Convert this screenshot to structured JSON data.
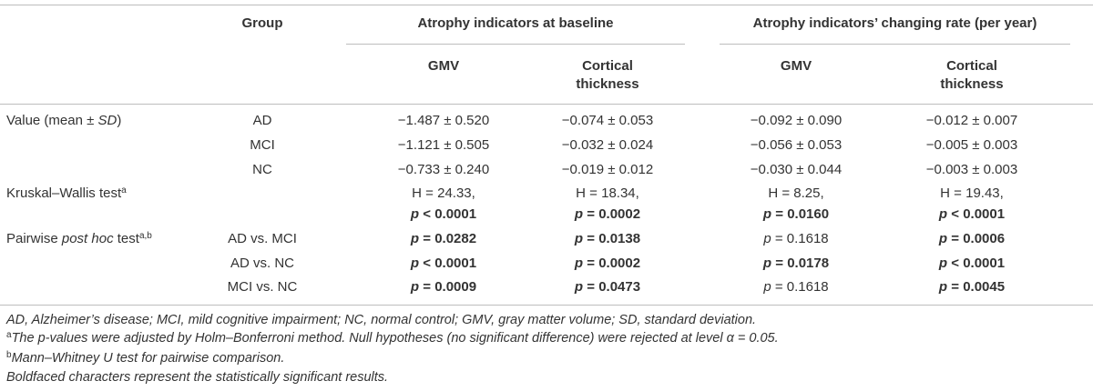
{
  "header": {
    "group": "Group",
    "baseline": "Atrophy indicators at baseline",
    "change": "Atrophy indicators’ changing rate (per year)",
    "gmv": "GMV",
    "ct_line1": "Cortical",
    "ct_line2": "thickness"
  },
  "value_row": {
    "label_pre": "Value (mean ± ",
    "label_sd": "SD",
    "label_post": ")",
    "rows": [
      {
        "group": "AD",
        "c1": "−1.487 ± 0.520",
        "c2": "−0.074 ± 0.053",
        "c3": "−0.092 ± 0.090",
        "c4": "−0.012 ± 0.007"
      },
      {
        "group": "MCI",
        "c1": "−1.121 ± 0.505",
        "c2": "−0.032 ± 0.024",
        "c3": "−0.056 ± 0.053",
        "c4": "−0.005 ± 0.003"
      },
      {
        "group": "NC",
        "c1": "−0.733 ± 0.240",
        "c2": "−0.019 ± 0.012",
        "c3": "−0.030 ± 0.044",
        "c4": "−0.003 ± 0.003"
      }
    ]
  },
  "kw": {
    "label": "Kruskal–Wallis test",
    "sup": "a",
    "h": [
      "H = 24.33,",
      "H = 18.34,",
      "H = 8.25,",
      "H = 19.43,"
    ],
    "p_sym": "p",
    "p": [
      " < 0.0001",
      " = 0.0002",
      " = 0.0160",
      " < 0.0001"
    ]
  },
  "pw": {
    "label_pre": "Pairwise ",
    "label_it": "post hoc",
    "label_post": " test",
    "sup": "a,b",
    "rows": [
      {
        "group": "AD vs. MCI",
        "v": [
          " = 0.0282",
          " = 0.0138",
          " = 0.1618",
          " = 0.0006"
        ]
      },
      {
        "group": "AD vs. NC",
        "v": [
          " < 0.0001",
          " = 0.0002",
          " = 0.0178",
          " < 0.0001"
        ]
      },
      {
        "group": "MCI vs. NC",
        "v": [
          " = 0.0009",
          " = 0.0473",
          " = 0.1618",
          " = 0.0045"
        ]
      }
    ]
  },
  "footnotes": {
    "abbr": "AD, Alzheimer’s disease; MCI, mild cognitive impairment; NC, normal control; GMV, gray matter volume; SD, standard deviation.",
    "a_mark": "a",
    "a": "The p-values were adjusted by Holm–Bonferroni method. Null hypotheses (no significant difference) were rejected at level α = 0.05.",
    "b_mark": "b",
    "b": "Mann–Whitney U test for pairwise comparison.",
    "bold": "Boldfaced characters represent the statistically significant results."
  }
}
